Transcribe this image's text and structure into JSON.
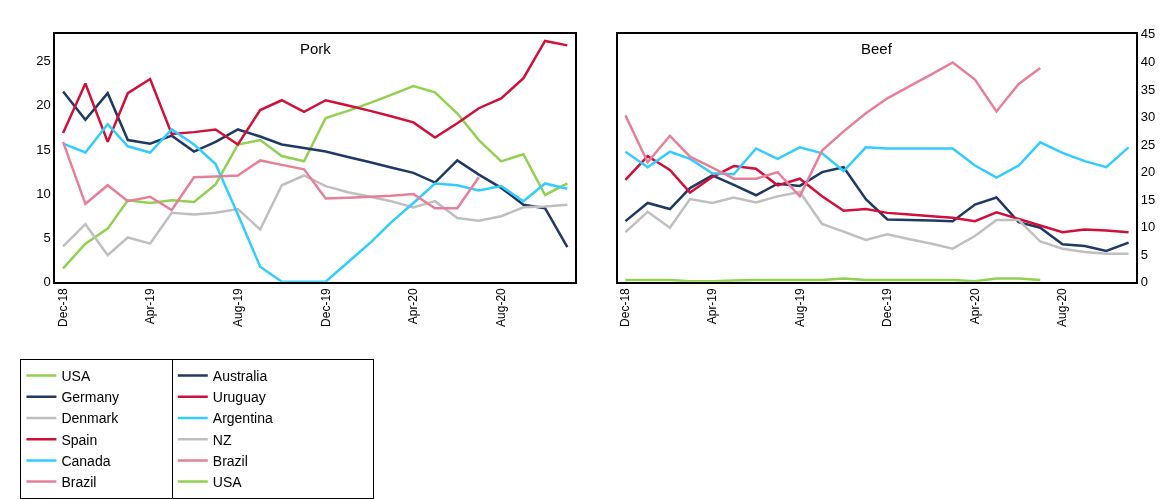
{
  "chart_data": [
    {
      "type": "line",
      "title": "Pork",
      "x": [
        "2018-12",
        "2019-01",
        "2019-02",
        "2019-03",
        "2019-04",
        "2019-05",
        "2019-06",
        "2019-07",
        "2019-08",
        "2019-09",
        "2019-10",
        "2019-11",
        "2019-12",
        "2020-01",
        "2020-02",
        "2020-03",
        "2020-04",
        "2020-05",
        "2020-06",
        "2020-07",
        "2020-08",
        "2020-09",
        "2020-10",
        "2020-11"
      ],
      "series": [
        {
          "name": "USA",
          "color": "#92d050",
          "values": [
            1.5,
            4.3,
            6,
            9.2,
            8.9,
            9.2,
            9,
            11,
            15.5,
            16,
            14.2,
            13.6,
            18.5,
            19.3,
            20.2,
            21.1,
            22.1,
            21.4,
            19,
            16,
            13.6,
            14.4,
            9.8,
            11.1
          ]
        },
        {
          "name": "Germany",
          "color": "#1f3864",
          "values": [
            21.5,
            18.3,
            21.3,
            16,
            15.6,
            16.5,
            14.7,
            15.8,
            17.2,
            16.4,
            15.5,
            15.1,
            14.7,
            14.1,
            13.5,
            12.9,
            12.3,
            11.2,
            13.7,
            12.1,
            10.6,
            8.7,
            8.3,
            3.9
          ]
        },
        {
          "name": "Denmark",
          "color": "#bfbfbf",
          "values": [
            4,
            6.5,
            3,
            5,
            4.3,
            7.8,
            7.6,
            7.8,
            8.2,
            5.9,
            10.9,
            12,
            10.8,
            10.1,
            9.6,
            9.1,
            8.4,
            9.1,
            7.2,
            6.9,
            7.4,
            8.4,
            8.5,
            8.7
          ]
        },
        {
          "name": "Spain",
          "color": "#d0103a",
          "values": [
            16.8,
            22.4,
            15.8,
            21.3,
            22.9,
            16.7,
            16.9,
            17.2,
            15.5,
            19.4,
            20.5,
            19.2,
            20.5,
            19.9,
            19.3,
            18.7,
            18,
            16.3,
            17.9,
            19.6,
            20.7,
            23,
            27.2,
            26.7
          ]
        },
        {
          "name": "Canada",
          "color": "#33ccff",
          "values": [
            15.6,
            14.6,
            17.8,
            15.3,
            14.6,
            17.2,
            15.5,
            13.3,
            7.6,
            1.7,
            0,
            0,
            0,
            2.2,
            4.4,
            6.7,
            8.9,
            11.1,
            10.9,
            10.3,
            10.8,
            9.1,
            11.1,
            10.5
          ]
        },
        {
          "name": "Brazil",
          "color": "#e6809a",
          "values": [
            15.8,
            8.8,
            10.9,
            9.1,
            9.6,
            8.1,
            11.8,
            11.9,
            12,
            13.7,
            13.2,
            12.7,
            9.4,
            9.5,
            9.6,
            9.7,
            9.9,
            8.3,
            8.3,
            11.8,
            null,
            null,
            null,
            null
          ]
        }
      ],
      "xlim": [
        "2018-11-20",
        "2020-11-12"
      ],
      "xticks": [
        {
          "value": "2018-12",
          "label": "Dec-18"
        },
        {
          "value": "2019-04",
          "label": "Apr-19"
        },
        {
          "value": "2019-08",
          "label": "Aug-19"
        },
        {
          "value": "2019-12",
          "label": "Dec-19"
        },
        {
          "value": "2020-04",
          "label": "Apr-20"
        },
        {
          "value": "2020-08",
          "label": "Aug-20"
        }
      ],
      "ylim": [
        0,
        28
      ],
      "yticks": [
        0,
        5,
        10,
        15,
        20,
        25
      ],
      "legend": "bottom"
    },
    {
      "type": "line",
      "title": "Beef",
      "x": [
        "2018-12",
        "2019-01",
        "2019-02",
        "2019-03",
        "2019-04",
        "2019-05",
        "2019-06",
        "2019-07",
        "2019-08",
        "2019-09",
        "2019-10",
        "2019-11",
        "2019-12",
        "2020-01",
        "2020-02",
        "2020-03",
        "2020-04",
        "2020-05",
        "2020-06",
        "2020-07",
        "2020-08",
        "2020-09",
        "2020-10",
        "2020-11"
      ],
      "series": [
        {
          "name": "Australia",
          "color": "#1f3864",
          "axis": "y2",
          "values": [
            11,
            14.3,
            13.2,
            17,
            19.3,
            17.6,
            15.7,
            17.8,
            17.4,
            19.9,
            20.8,
            15,
            11.3,
            11.2,
            11.1,
            11,
            14,
            15.3,
            10.8,
            9.8,
            6.8,
            6.5,
            5.6,
            7.1
          ]
        },
        {
          "name": "Uruguay",
          "color": "#d0103a",
          "axis": "y2",
          "values": [
            18.5,
            22.8,
            20.3,
            16.2,
            19,
            21,
            20.5,
            17.5,
            18.7,
            15.5,
            12.9,
            13.2,
            12.5,
            12.2,
            11.9,
            11.6,
            11,
            12.6,
            11.4,
            10.2,
            9,
            9.5,
            9.3,
            9
          ]
        },
        {
          "name": "Argentina",
          "color": "#33ccff",
          "axis": "y2",
          "values": [
            23.6,
            20.8,
            23.6,
            22.3,
            19.7,
            19.5,
            24.2,
            22.3,
            24.4,
            23.3,
            20.1,
            24.4,
            24.2,
            24.2,
            24.2,
            24.2,
            21.1,
            18.9,
            21.1,
            25.3,
            23.4,
            21.9,
            20.8,
            24.4
          ]
        },
        {
          "name": "NZ",
          "color": "#bfbfbf",
          "axis": "y2",
          "values": [
            9,
            12.7,
            9.8,
            15,
            14.3,
            15.3,
            14.4,
            15.5,
            16.3,
            10.5,
            9.1,
            7.6,
            8.6,
            7.7,
            6.9,
            6,
            8.3,
            11.2,
            11.2,
            7.3,
            6,
            5.4,
            5.1,
            5.1
          ]
        },
        {
          "name": "Brazil",
          "color": "#e6809a",
          "axis": "y2",
          "values": [
            30.2,
            21.7,
            26.5,
            22.7,
            20.7,
            18.7,
            18.7,
            19.9,
            15.5,
            23.8,
            27.3,
            30.6,
            33.3,
            35.5,
            37.7,
            39.8,
            36.7,
            30.9,
            35.9,
            38.8,
            null,
            null,
            null,
            null
          ]
        },
        {
          "name": "USA",
          "color": "#92d050",
          "axis": "y2",
          "values": [
            0.3,
            0.3,
            0.3,
            0.1,
            0.1,
            0.2,
            0.3,
            0.3,
            0.3,
            0.3,
            0.6,
            0.3,
            0.3,
            0.3,
            0.3,
            0.3,
            0.1,
            0.6,
            0.6,
            0.3,
            null,
            null,
            null,
            null
          ]
        }
      ],
      "xlim": [
        "2018-11-20",
        "2020-11-12"
      ],
      "xticks": [
        {
          "value": "2018-12",
          "label": "Dec-18"
        },
        {
          "value": "2019-04",
          "label": "Apr-19"
        },
        {
          "value": "2019-08",
          "label": "Aug-19"
        },
        {
          "value": "2019-12",
          "label": "Dec-19"
        },
        {
          "value": "2020-04",
          "label": "Apr-20"
        },
        {
          "value": "2020-08",
          "label": "Aug-20"
        }
      ],
      "y2lim": [
        0,
        45
      ],
      "y2ticks": [
        0,
        5,
        10,
        15,
        20,
        25,
        30,
        35,
        40,
        45
      ],
      "legend": "bottom"
    }
  ]
}
